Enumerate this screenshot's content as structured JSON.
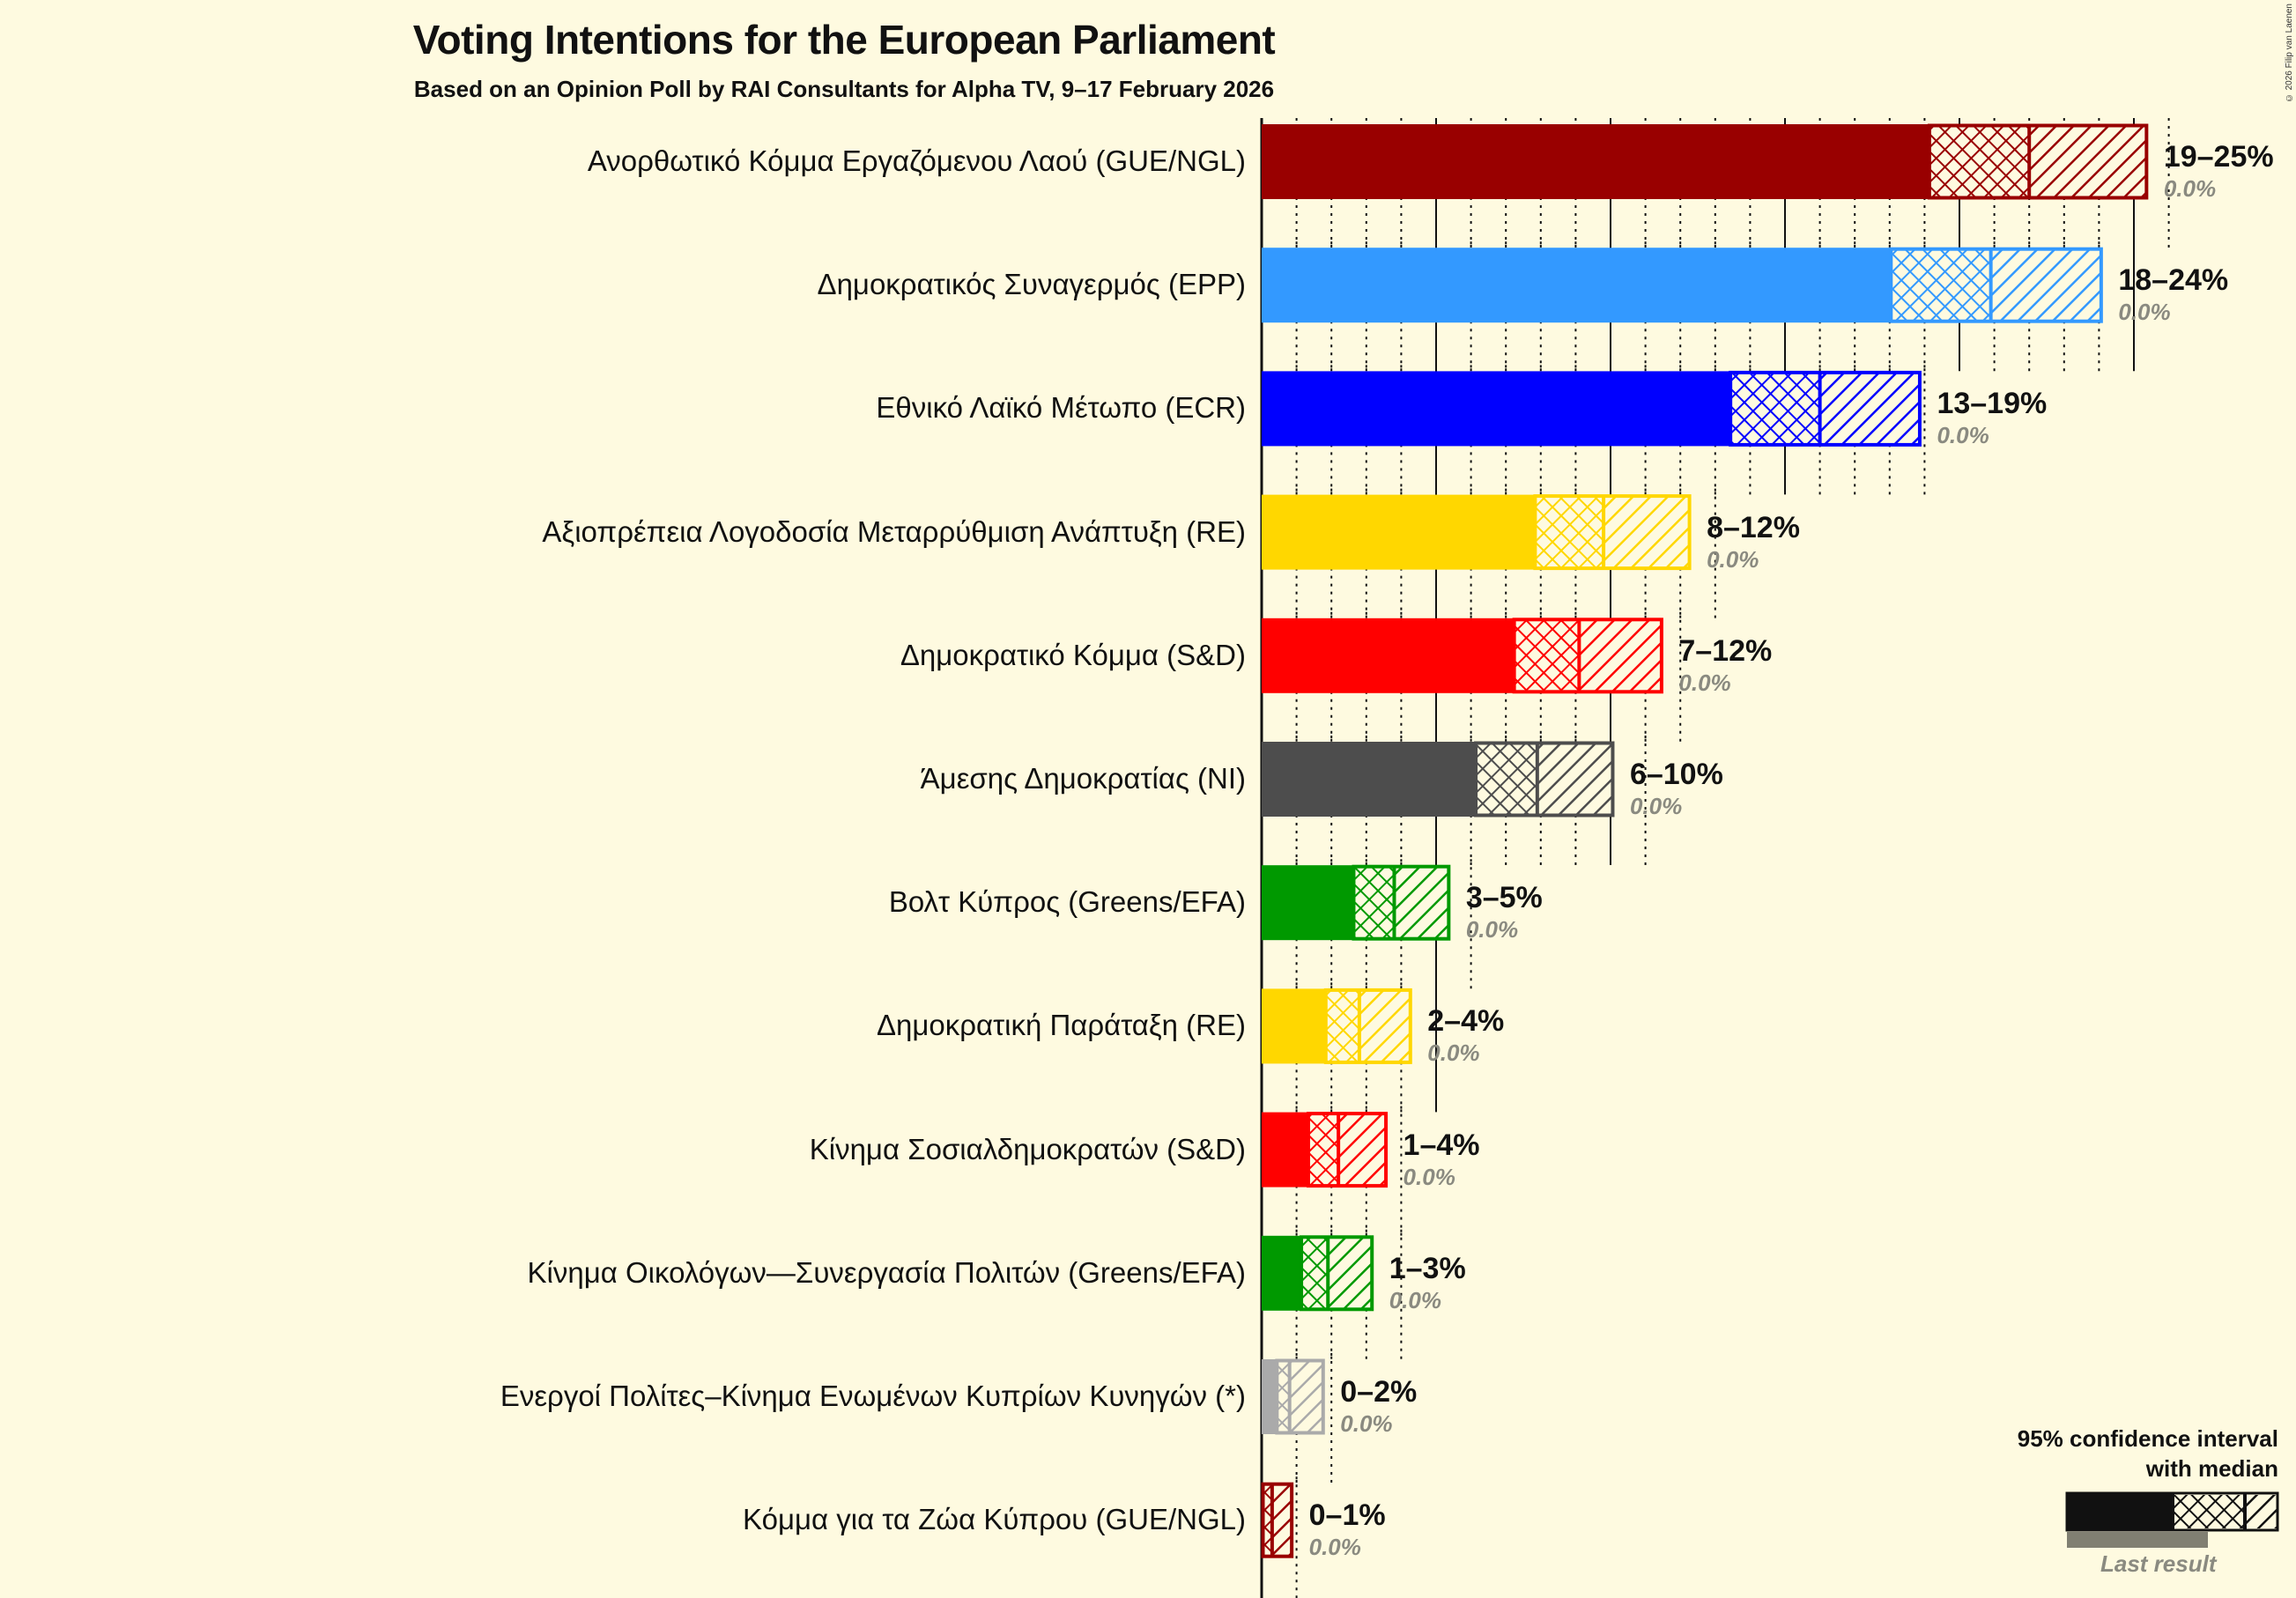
{
  "title": "Voting Intentions for the European Parliament",
  "subtitle": "Based on an Opinion Poll by RAI Consultants for Alpha TV, 9–17 February 2026",
  "copyright": "© 2026 Filip van Laenen",
  "legend": {
    "title_line1": "95% confidence interval",
    "title_line2": "with median",
    "last_result": "Last result"
  },
  "chart_data": {
    "type": "bar",
    "orientation": "horizontal",
    "title": "Voting Intentions for the European Parliament",
    "subtitle": "Based on an Opinion Poll by RAI Consultants for Alpha TV, 9–17 February 2026",
    "xlabel": "",
    "ylabel": "",
    "xlim": [
      0,
      26
    ],
    "grid": {
      "major_every": 5,
      "minor_every": 1
    },
    "legend_position": "bottom-right",
    "categories": [
      "Ανορθωτικό Κόμμα Εργαζόμενου Λαού (GUE/NGL)",
      "Δημοκρατικός Συναγερμός (EPP)",
      "Εθνικό Λαϊκό Μέτωπο (ECR)",
      "Αξιοπρέπεια Λογοδοσία Μεταρρύθμιση Ανάπτυξη (RE)",
      "Δημοκρατικό Κόμμα (S&D)",
      "Άμεσης Δημοκρατίας (NI)",
      "Βολτ Κύπρος (Greens/EFA)",
      "Δημοκρατική Παράταξη (RE)",
      "Κίνημα Σοσιαλδημοκρατών (S&D)",
      "Κίνημα Οικολόγων—Συνεργασία Πολιτών (Greens/EFA)",
      "Ενεργοί Πολίτες–Κίνημα Ενωμένων Κυπρίων Κυνηγών (*)",
      "Κόμμα για τα Ζώα Κύπρου (GUE/NGL)"
    ],
    "series": [
      {
        "name": "CI low",
        "values": [
          19.1,
          18.0,
          13.4,
          7.8,
          7.2,
          6.1,
          2.6,
          1.8,
          1.3,
          1.1,
          0.4,
          0.0
        ]
      },
      {
        "name": "Median",
        "values": [
          22.0,
          20.9,
          16.0,
          9.8,
          9.1,
          7.9,
          3.8,
          2.8,
          2.2,
          1.9,
          0.8,
          0.3
        ]
      },
      {
        "name": "CI high",
        "values": [
          25.4,
          24.1,
          18.9,
          12.3,
          11.5,
          10.1,
          5.4,
          4.3,
          3.6,
          3.2,
          1.8,
          0.9
        ]
      },
      {
        "name": "Last result",
        "values": [
          0.0,
          0.0,
          0.0,
          0.0,
          0.0,
          0.0,
          0.0,
          0.0,
          0.0,
          0.0,
          0.0,
          0.0
        ]
      }
    ],
    "range_labels": [
      "19–25%",
      "18–24%",
      "13–19%",
      "8–12%",
      "7–12%",
      "6–10%",
      "3–5%",
      "2–4%",
      "1–4%",
      "1–3%",
      "0–2%",
      "0–1%"
    ],
    "last_labels": [
      "0.0%",
      "0.0%",
      "0.0%",
      "0.0%",
      "0.0%",
      "0.0%",
      "0.0%",
      "0.0%",
      "0.0%",
      "0.0%",
      "0.0%",
      "0.0%"
    ],
    "colors": [
      "#990000",
      "#3399ff",
      "#0000ff",
      "#ffd700",
      "#ff0000",
      "#4d4d4d",
      "#009900",
      "#ffd700",
      "#ff0000",
      "#009900",
      "#aaaaaa",
      "#990000"
    ]
  }
}
